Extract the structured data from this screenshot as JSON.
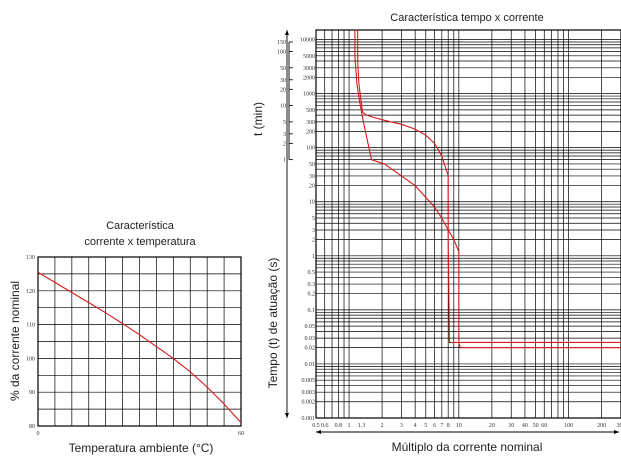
{
  "chart_data": [
    {
      "id": "temp",
      "type": "line",
      "title_lines": [
        "Característica",
        "corrente x temperatura"
      ],
      "xlabel": "Temperatura ambiente (°C)",
      "ylabel": "% da corrente nominal",
      "xlim": [
        0,
        60
      ],
      "ylim": [
        80,
        130
      ],
      "x_ticks": [
        "0",
        "60"
      ],
      "y_ticks": [
        "130",
        "120",
        "110",
        "100",
        "90",
        "80"
      ],
      "grid": true,
      "series": [
        {
          "x": [
            0,
            5,
            10,
            15,
            20,
            25,
            30,
            35,
            40,
            45,
            50,
            55,
            60
          ],
          "y": [
            125.5,
            122.5,
            119.5,
            116.5,
            113.5,
            110.3,
            107,
            103.5,
            100,
            96,
            91.5,
            86.5,
            81
          ]
        }
      ]
    },
    {
      "id": "trip",
      "type": "line",
      "title": "Característica tempo x corrente",
      "xlabel": "Múltiplo da corrente nominal",
      "ylabel_seconds": "Tempo (t) de atuação (s)",
      "ylabel_minutes": "t (min)",
      "x_scale": "log",
      "y_scale": "log",
      "xlim": [
        0.5,
        300
      ],
      "ylim_seconds": [
        0.001,
        15000
      ],
      "x_ticks": [
        "0.5",
        "0.6",
        "0.8",
        "1",
        "1.3",
        "2",
        "3",
        "4",
        "5",
        "6",
        "7",
        "8",
        "10",
        "20",
        "30",
        "40",
        "50",
        "60",
        "100",
        "200",
        "300"
      ],
      "y_ticks_seconds": [
        "10000",
        "5000",
        "3000",
        "2000",
        "1000",
        "500",
        "300",
        "200",
        "100",
        "50",
        "30",
        "20",
        "10",
        "5",
        "3",
        "2",
        "1",
        "0.5",
        "0.3",
        "0.2",
        "0.1",
        "0.05",
        "0.03",
        "0.02",
        "0.01",
        "0.005",
        "0.003",
        "0.002",
        "0.001"
      ],
      "y_ticks_minutes": [
        "150",
        "100",
        "50",
        "30",
        "20",
        "10",
        "5",
        "3",
        "2",
        "1"
      ],
      "grid": true,
      "series": [
        {
          "x": [
            1.2,
            1.2,
            1.23,
            1.28,
            1.33,
            1.45,
            1.7,
            2.1,
            3,
            4,
            5,
            6,
            7,
            8,
            8,
            8.2,
            10,
            20,
            60,
            300
          ],
          "y": [
            15000,
            4000,
            1500,
            800,
            450,
            400,
            360,
            320,
            270,
            220,
            170,
            120,
            70,
            30,
            2,
            0.025,
            0.025,
            0.025,
            0.025,
            0.025
          ]
        },
        {
          "x": [
            1.13,
            1.13,
            1.18,
            1.25,
            1.35,
            1.6,
            2.1,
            3,
            4,
            5,
            6,
            7,
            8,
            9,
            10,
            10,
            10.3,
            12,
            20,
            60,
            300
          ],
          "y": [
            15000,
            5000,
            1500,
            700,
            300,
            60,
            50,
            30,
            20,
            12,
            8,
            5,
            3,
            2,
            1.2,
            0.025,
            0.02,
            0.02,
            0.02,
            0.02,
            0.02
          ]
        }
      ]
    }
  ]
}
